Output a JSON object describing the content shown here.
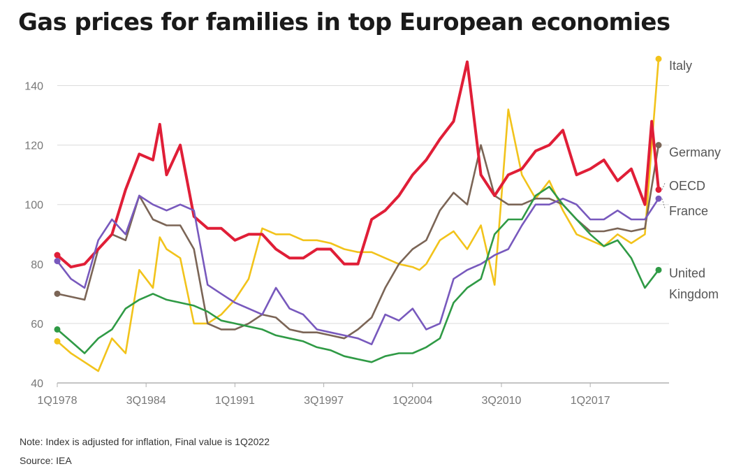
{
  "chart_data": {
    "type": "line",
    "title": "Gas prices for families in top European economies",
    "note": "Note: Index is adjusted for inflation, Final value is 1Q2022",
    "source": "Source: IEA",
    "x_range": [
      "1Q1978",
      "1Q2022"
    ],
    "x_ticks": [
      "1Q1978",
      "3Q1984",
      "1Q1991",
      "3Q1997",
      "1Q2004",
      "3Q2010",
      "1Q2017"
    ],
    "ylim": [
      40,
      150
    ],
    "y_ticks": [
      40,
      60,
      80,
      100,
      120,
      140
    ],
    "grid": true,
    "legend": "end-labels",
    "series": [
      {
        "name": "Italy",
        "color": "#f2c31b",
        "points": [
          [
            1978,
            54
          ],
          [
            1979,
            50
          ],
          [
            1980,
            47
          ],
          [
            1981,
            44
          ],
          [
            1982,
            55
          ],
          [
            1983,
            50
          ],
          [
            1984,
            78
          ],
          [
            1985,
            72
          ],
          [
            1985.5,
            89
          ],
          [
            1986,
            85
          ],
          [
            1987,
            82
          ],
          [
            1988,
            60
          ],
          [
            1989,
            60
          ],
          [
            1990,
            63
          ],
          [
            1991,
            68
          ],
          [
            1992,
            75
          ],
          [
            1993,
            92
          ],
          [
            1994,
            90
          ],
          [
            1995,
            90
          ],
          [
            1996,
            88
          ],
          [
            1997,
            88
          ],
          [
            1998,
            87
          ],
          [
            1999,
            85
          ],
          [
            2000,
            84
          ],
          [
            2001,
            84
          ],
          [
            2002,
            82
          ],
          [
            2003,
            80
          ],
          [
            2004,
            79
          ],
          [
            2004.5,
            78
          ],
          [
            2005,
            80
          ],
          [
            2006,
            88
          ],
          [
            2007,
            91
          ],
          [
            2008,
            85
          ],
          [
            2009,
            93
          ],
          [
            2010,
            73
          ],
          [
            2011,
            132
          ],
          [
            2012,
            110
          ],
          [
            2013,
            102
          ],
          [
            2014,
            108
          ],
          [
            2015,
            98
          ],
          [
            2016,
            90
          ],
          [
            2017,
            88
          ],
          [
            2018,
            86
          ],
          [
            2019,
            90
          ],
          [
            2020,
            87
          ],
          [
            2021,
            90
          ],
          [
            2021.5,
            120
          ],
          [
            2022,
            149
          ]
        ]
      },
      {
        "name": "Germany",
        "color": "#7b6556",
        "points": [
          [
            1978,
            70
          ],
          [
            1979,
            69
          ],
          [
            1980,
            68
          ],
          [
            1981,
            85
          ],
          [
            1982,
            90
          ],
          [
            1983,
            88
          ],
          [
            1984,
            103
          ],
          [
            1985,
            95
          ],
          [
            1986,
            93
          ],
          [
            1987,
            93
          ],
          [
            1988,
            85
          ],
          [
            1989,
            60
          ],
          [
            1990,
            58
          ],
          [
            1991,
            58
          ],
          [
            1992,
            60
          ],
          [
            1993,
            63
          ],
          [
            1994,
            62
          ],
          [
            1995,
            58
          ],
          [
            1996,
            57
          ],
          [
            1997,
            57
          ],
          [
            1998,
            56
          ],
          [
            1999,
            55
          ],
          [
            2000,
            58
          ],
          [
            2001,
            62
          ],
          [
            2002,
            72
          ],
          [
            2003,
            80
          ],
          [
            2004,
            85
          ],
          [
            2005,
            88
          ],
          [
            2006,
            98
          ],
          [
            2007,
            104
          ],
          [
            2008,
            100
          ],
          [
            2009,
            120
          ],
          [
            2010,
            103
          ],
          [
            2011,
            100
          ],
          [
            2012,
            100
          ],
          [
            2013,
            102
          ],
          [
            2014,
            102
          ],
          [
            2015,
            100
          ],
          [
            2016,
            95
          ],
          [
            2017,
            91
          ],
          [
            2018,
            91
          ],
          [
            2019,
            92
          ],
          [
            2020,
            91
          ],
          [
            2021,
            92
          ],
          [
            2022,
            120
          ]
        ]
      },
      {
        "name": "OECD",
        "color": "#e01e37",
        "points": [
          [
            1978,
            83
          ],
          [
            1979,
            79
          ],
          [
            1980,
            80
          ],
          [
            1981,
            85
          ],
          [
            1982,
            90
          ],
          [
            1983,
            105
          ],
          [
            1984,
            117
          ],
          [
            1985,
            115
          ],
          [
            1985.5,
            127
          ],
          [
            1986,
            110
          ],
          [
            1987,
            120
          ],
          [
            1988,
            96
          ],
          [
            1989,
            92
          ],
          [
            1990,
            92
          ],
          [
            1991,
            88
          ],
          [
            1992,
            90
          ],
          [
            1993,
            90
          ],
          [
            1994,
            85
          ],
          [
            1995,
            82
          ],
          [
            1996,
            82
          ],
          [
            1997,
            85
          ],
          [
            1998,
            85
          ],
          [
            1999,
            80
          ],
          [
            2000,
            80
          ],
          [
            2001,
            95
          ],
          [
            2002,
            98
          ],
          [
            2003,
            103
          ],
          [
            2004,
            110
          ],
          [
            2005,
            115
          ],
          [
            2006,
            122
          ],
          [
            2007,
            128
          ],
          [
            2008,
            148
          ],
          [
            2009,
            110
          ],
          [
            2010,
            103
          ],
          [
            2011,
            110
          ],
          [
            2012,
            112
          ],
          [
            2013,
            118
          ],
          [
            2014,
            120
          ],
          [
            2015,
            125
          ],
          [
            2016,
            110
          ],
          [
            2017,
            112
          ],
          [
            2018,
            115
          ],
          [
            2019,
            108
          ],
          [
            2020,
            112
          ],
          [
            2021,
            100
          ],
          [
            2021.5,
            128
          ],
          [
            2022,
            105
          ]
        ]
      },
      {
        "name": "France",
        "color": "#7859bd",
        "points": [
          [
            1978,
            81
          ],
          [
            1979,
            75
          ],
          [
            1980,
            72
          ],
          [
            1981,
            88
          ],
          [
            1982,
            95
          ],
          [
            1983,
            90
          ],
          [
            1984,
            103
          ],
          [
            1985,
            100
          ],
          [
            1986,
            98
          ],
          [
            1987,
            100
          ],
          [
            1988,
            98
          ],
          [
            1989,
            73
          ],
          [
            1990,
            70
          ],
          [
            1991,
            67
          ],
          [
            1992,
            65
          ],
          [
            1993,
            63
          ],
          [
            1994,
            72
          ],
          [
            1995,
            65
          ],
          [
            1996,
            63
          ],
          [
            1997,
            58
          ],
          [
            1998,
            57
          ],
          [
            1999,
            56
          ],
          [
            2000,
            55
          ],
          [
            2001,
            53
          ],
          [
            2002,
            63
          ],
          [
            2003,
            61
          ],
          [
            2004,
            65
          ],
          [
            2005,
            58
          ],
          [
            2006,
            60
          ],
          [
            2007,
            75
          ],
          [
            2008,
            78
          ],
          [
            2009,
            80
          ],
          [
            2010,
            83
          ],
          [
            2011,
            85
          ],
          [
            2012,
            93
          ],
          [
            2013,
            100
          ],
          [
            2014,
            100
          ],
          [
            2015,
            102
          ],
          [
            2016,
            100
          ],
          [
            2017,
            95
          ],
          [
            2018,
            95
          ],
          [
            2019,
            98
          ],
          [
            2020,
            95
          ],
          [
            2021,
            95
          ],
          [
            2022,
            102
          ]
        ]
      },
      {
        "name": "United Kingdom",
        "color": "#2f9a45",
        "points": [
          [
            1978,
            58
          ],
          [
            1979,
            54
          ],
          [
            1980,
            50
          ],
          [
            1981,
            55
          ],
          [
            1982,
            58
          ],
          [
            1983,
            65
          ],
          [
            1984,
            68
          ],
          [
            1985,
            70
          ],
          [
            1986,
            68
          ],
          [
            1987,
            67
          ],
          [
            1988,
            66
          ],
          [
            1989,
            64
          ],
          [
            1990,
            61
          ],
          [
            1991,
            60
          ],
          [
            1992,
            59
          ],
          [
            1993,
            58
          ],
          [
            1994,
            56
          ],
          [
            1995,
            55
          ],
          [
            1996,
            54
          ],
          [
            1997,
            52
          ],
          [
            1998,
            51
          ],
          [
            1999,
            49
          ],
          [
            2000,
            48
          ],
          [
            2001,
            47
          ],
          [
            2002,
            49
          ],
          [
            2003,
            50
          ],
          [
            2004,
            50
          ],
          [
            2005,
            52
          ],
          [
            2006,
            55
          ],
          [
            2007,
            67
          ],
          [
            2008,
            72
          ],
          [
            2009,
            75
          ],
          [
            2010,
            90
          ],
          [
            2011,
            95
          ],
          [
            2012,
            95
          ],
          [
            2013,
            103
          ],
          [
            2014,
            106
          ],
          [
            2015,
            100
          ],
          [
            2016,
            95
          ],
          [
            2017,
            90
          ],
          [
            2018,
            86
          ],
          [
            2019,
            88
          ],
          [
            2020,
            82
          ],
          [
            2021,
            72
          ],
          [
            2022,
            78
          ]
        ]
      }
    ]
  }
}
